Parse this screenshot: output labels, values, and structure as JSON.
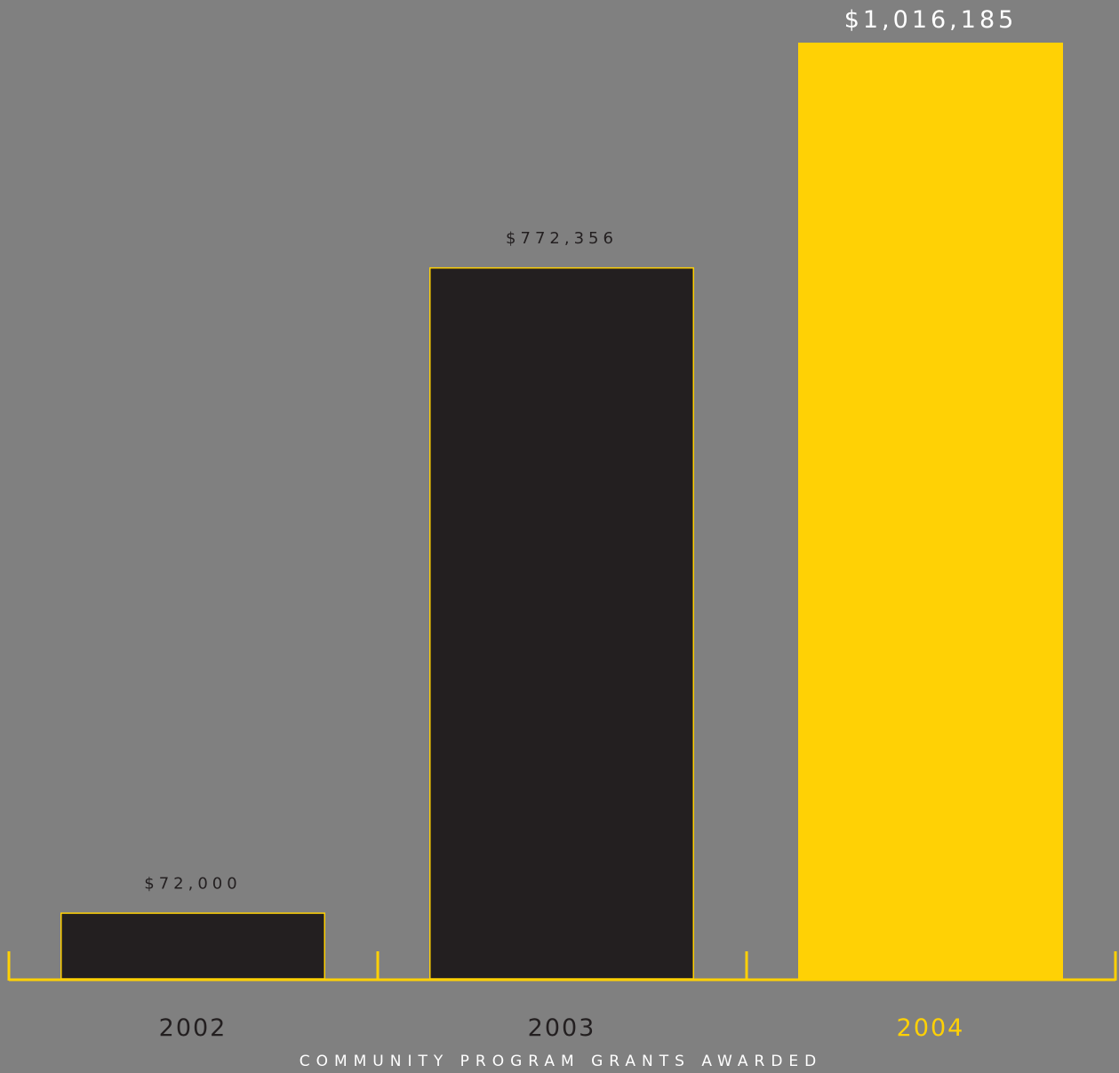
{
  "chart_data": {
    "type": "bar",
    "title": "",
    "xlabel": "COMMUNITY PROGRAM GRANTS AWARDED",
    "ylabel": "",
    "categories": [
      "2002",
      "2003",
      "2004"
    ],
    "values": [
      72000,
      772356,
      1016185
    ],
    "value_labels": [
      "$72,000",
      "$772,356",
      "$1,016,185"
    ],
    "ylim": [
      0,
      1016185
    ],
    "grid": false,
    "legend": "none"
  },
  "colors": {
    "background": "#808080",
    "accent": "#FFD105",
    "bar_dark": "#231F20",
    "label_dark": "#231F20",
    "label_light": "#FFFFFF"
  },
  "style": {
    "highlight_index": 2
  }
}
